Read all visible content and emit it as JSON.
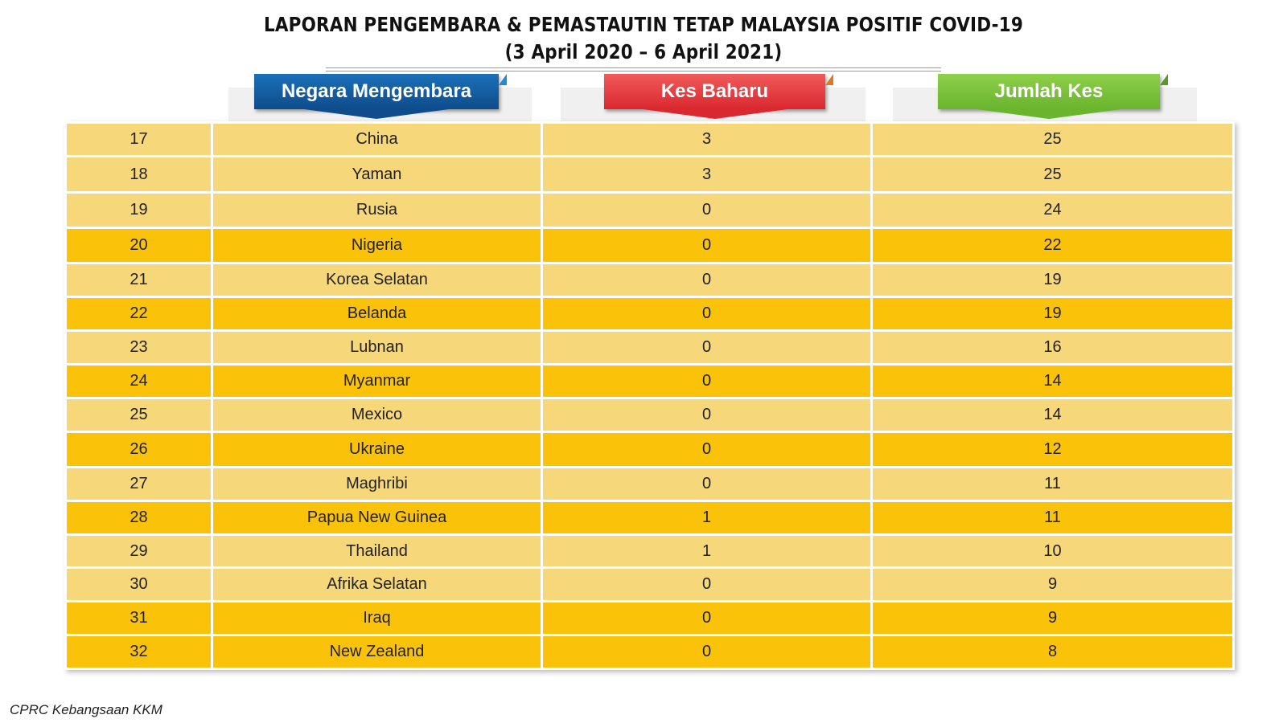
{
  "title": {
    "line1": "LAPORAN PENGEMBARA & PEMASTAUTIN TETAP MALAYSIA POSITIF COVID-19",
    "line2": "(3 April 2020 – 6 April 2021)"
  },
  "headers": {
    "country": "Negara Mengembara",
    "new_cases": "Kes Baharu",
    "total_cases": "Jumlah Kes"
  },
  "colors": {
    "row_light": "#f6d77a",
    "row_dark": "#fbc20a",
    "header_country": "#1565b0",
    "header_new": "#e63a3f",
    "header_total": "#7cc23c"
  },
  "rows": [
    {
      "rank": "17",
      "country": "China",
      "new": "3",
      "total": "25",
      "shade": "light"
    },
    {
      "rank": "18",
      "country": "Yaman",
      "new": "3",
      "total": "25",
      "shade": "light"
    },
    {
      "rank": "19",
      "country": "Rusia",
      "new": "0",
      "total": "24",
      "shade": "light"
    },
    {
      "rank": "20",
      "country": "Nigeria",
      "new": "0",
      "total": "22",
      "shade": "dark"
    },
    {
      "rank": "21",
      "country": "Korea Selatan",
      "new": "0",
      "total": "19",
      "shade": "light"
    },
    {
      "rank": "22",
      "country": "Belanda",
      "new": "0",
      "total": "19",
      "shade": "dark"
    },
    {
      "rank": "23",
      "country": "Lubnan",
      "new": "0",
      "total": "16",
      "shade": "light"
    },
    {
      "rank": "24",
      "country": "Myanmar",
      "new": "0",
      "total": "14",
      "shade": "dark"
    },
    {
      "rank": "25",
      "country": "Mexico",
      "new": "0",
      "total": "14",
      "shade": "light"
    },
    {
      "rank": "26",
      "country": "Ukraine",
      "new": "0",
      "total": "12",
      "shade": "dark"
    },
    {
      "rank": "27",
      "country": "Maghribi",
      "new": "0",
      "total": "11",
      "shade": "light"
    },
    {
      "rank": "28",
      "country": "Papua New Guinea",
      "new": "1",
      "total": "11",
      "shade": "dark"
    },
    {
      "rank": "29",
      "country": "Thailand",
      "new": "1",
      "total": "10",
      "shade": "light"
    },
    {
      "rank": "30",
      "country": "Afrika Selatan",
      "new": "0",
      "total": "9",
      "shade": "light"
    },
    {
      "rank": "31",
      "country": "Iraq",
      "new": "0",
      "total": "9",
      "shade": "dark"
    },
    {
      "rank": "32",
      "country": "New Zealand",
      "new": "0",
      "total": "8",
      "shade": "dark"
    }
  ],
  "footer": "CPRC Kebangsaan KKM"
}
